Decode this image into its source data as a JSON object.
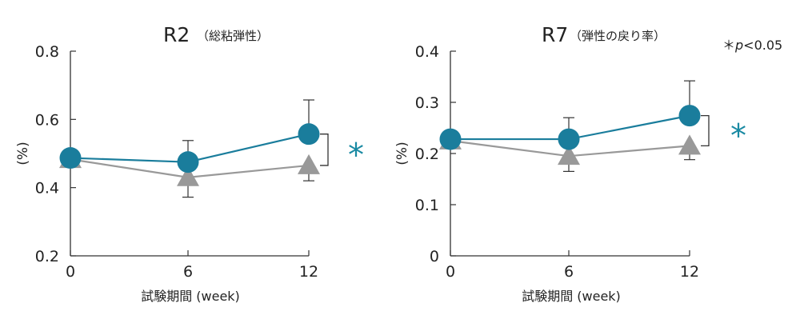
{
  "chart_data": [
    {
      "type": "line",
      "title": "R2",
      "subtitle": "（総粘弾性）",
      "xlabel": "試験期間 (week)",
      "ylabel": "(%)",
      "x": [
        0,
        6,
        12
      ],
      "x_tick_labels": [
        "0",
        "6",
        "12"
      ],
      "ylim": [
        0.2,
        0.8
      ],
      "y_ticks": [
        0.2,
        0.4,
        0.6,
        0.8
      ],
      "y_tick_labels": [
        "0.2",
        "0.4",
        "0.6",
        "0.8"
      ],
      "grid": false,
      "series": [
        {
          "values": [
            0.487,
            0.475,
            0.557
          ],
          "error_upper": [
            null,
            0.538,
            0.657
          ],
          "marker": "circle",
          "color": "#1a7d9c"
        },
        {
          "values": [
            0.483,
            0.43,
            0.465
          ],
          "error_lower": [
            null,
            0.372,
            0.42
          ],
          "marker": "triangle",
          "color": "#999999"
        }
      ],
      "significance": {
        "at_x": 12,
        "marker": "*",
        "color": "#1a8aa3"
      }
    },
    {
      "type": "line",
      "title": "R7",
      "subtitle": "（弾性の戻り率）",
      "xlabel": "試験期間 (week)",
      "ylabel": "(%)",
      "x": [
        0,
        6,
        12
      ],
      "x_tick_labels": [
        "0",
        "6",
        "12"
      ],
      "ylim": [
        0,
        0.4
      ],
      "y_ticks": [
        0,
        0.1,
        0.2,
        0.3,
        0.4
      ],
      "y_tick_labels": [
        "0",
        "0.1",
        "0.2",
        "0.3",
        "0.4"
      ],
      "grid": false,
      "series": [
        {
          "values": [
            0.228,
            0.228,
            0.274
          ],
          "error_upper": [
            null,
            0.27,
            0.342
          ],
          "marker": "circle",
          "color": "#1a7d9c"
        },
        {
          "values": [
            0.225,
            0.195,
            0.215
          ],
          "error_lower": [
            null,
            0.165,
            0.188
          ],
          "marker": "triangle",
          "color": "#999999"
        }
      ],
      "significance": {
        "at_x": 12,
        "marker": "*",
        "color": "#1a8aa3"
      }
    }
  ],
  "note": {
    "prefix": "＊",
    "p_symbol": "p",
    "rest": "<0.05"
  }
}
